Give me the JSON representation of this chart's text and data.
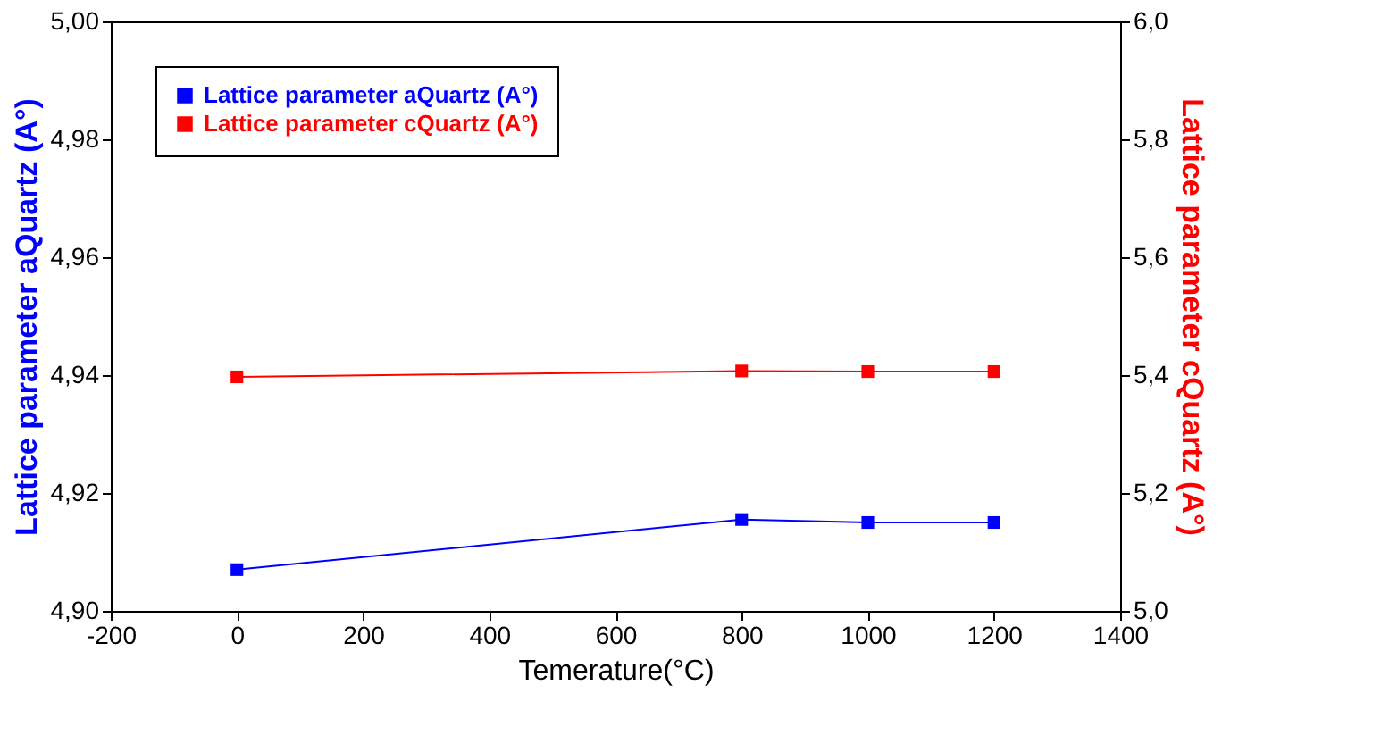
{
  "chart_data": {
    "type": "line",
    "xlabel": "Temerature(°C)",
    "ylabel": "Lattice parameter aQuartz (A°)",
    "y2label": "Lattice parameter cQuartz (A°)",
    "x": [
      0,
      800,
      1000,
      1200
    ],
    "series": [
      {
        "name": "Lattice parameter aQuartz (A°)",
        "color": "#0000ff",
        "values": [
          4.907,
          4.9155,
          4.915,
          4.915
        ]
      },
      {
        "name": "Lattice parameter cQuartz (A°)",
        "color": "#ff0000",
        "values": [
          5.397,
          5.407,
          5.406,
          5.406
        ],
        "axis": "y2"
      }
    ],
    "xlim": [
      -200,
      1400
    ],
    "xticks": [
      -200,
      0,
      200,
      400,
      600,
      800,
      1000,
      1200,
      1400
    ],
    "ylim": [
      4.9,
      5.0
    ],
    "yticks": [
      {
        "value": 4.9,
        "label": "4,90"
      },
      {
        "value": 4.92,
        "label": "4,92"
      },
      {
        "value": 4.94,
        "label": "4,94"
      },
      {
        "value": 4.96,
        "label": "4,96"
      },
      {
        "value": 4.98,
        "label": "4,98"
      },
      {
        "value": 5.0,
        "label": "5,00"
      }
    ],
    "y2lim": [
      5.0,
      6.0
    ],
    "y2ticks": [
      {
        "value": 5.0,
        "label": "5,0"
      },
      {
        "value": 5.2,
        "label": "5,2"
      },
      {
        "value": 5.4,
        "label": "5,4"
      },
      {
        "value": 5.6,
        "label": "5,6"
      },
      {
        "value": 5.8,
        "label": "5,8"
      },
      {
        "value": 6.0,
        "label": "6,0"
      }
    ],
    "marker": "square",
    "line_style": "solid",
    "grid": false,
    "legend": "top left"
  }
}
